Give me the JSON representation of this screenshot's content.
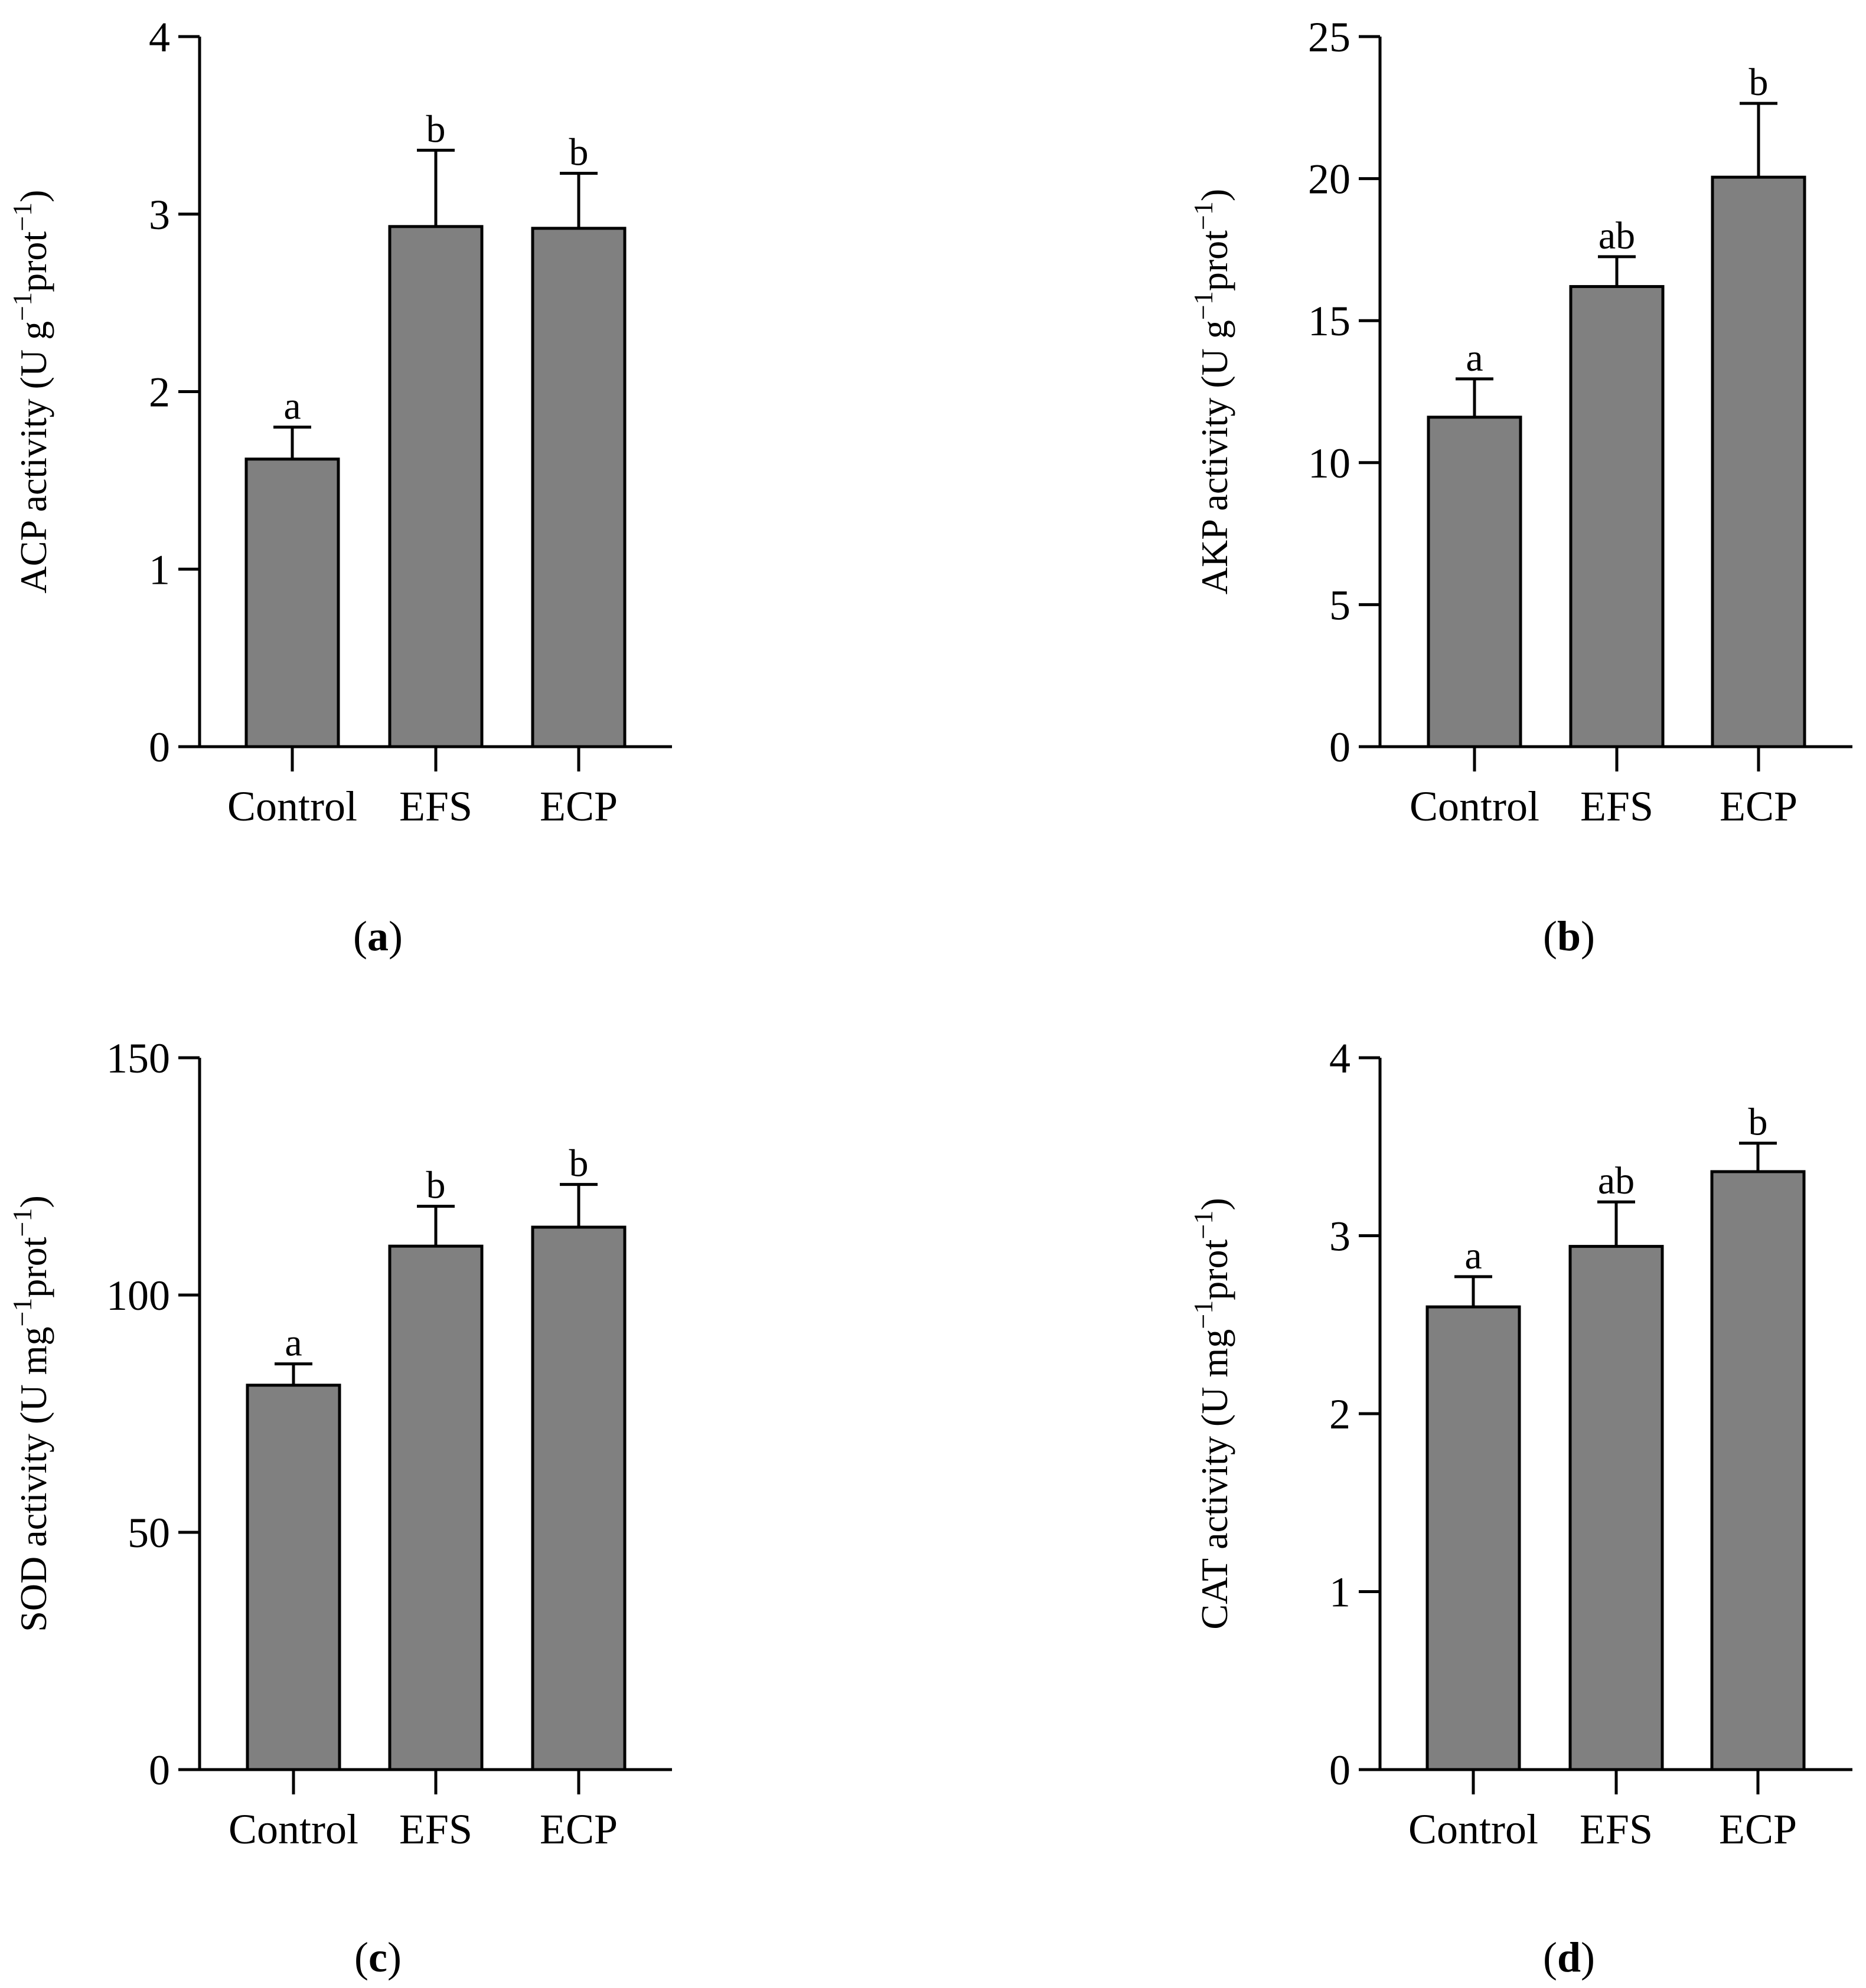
{
  "chart_data": [
    {
      "type": "bar",
      "panel_label": "a",
      "ylabel": {
        "prefix": "ACP activity (U g",
        "mid": "prot",
        "suffix": ")",
        "exp1": "−1",
        "exp2": "−1"
      },
      "categories": [
        "Control",
        "EFS",
        "ECP"
      ],
      "values": [
        1.62,
        2.93,
        2.92
      ],
      "errors": [
        0.18,
        0.43,
        0.31
      ],
      "significance": [
        "a",
        "b",
        "b"
      ],
      "ylim": [
        0,
        4
      ],
      "yticks": [
        0,
        1,
        2,
        3,
        4
      ],
      "bar_color": "#808080"
    },
    {
      "type": "bar",
      "panel_label": "b",
      "ylabel": {
        "prefix": "AKP activity (U g",
        "mid": "prot",
        "suffix": ")",
        "exp1": "−1",
        "exp2": "−1"
      },
      "categories": [
        "Control",
        "EFS",
        "ECP"
      ],
      "values": [
        11.6,
        16.2,
        20.05
      ],
      "errors": [
        1.35,
        1.05,
        2.6
      ],
      "significance": [
        "a",
        "ab",
        "b"
      ],
      "ylim": [
        0,
        25
      ],
      "yticks": [
        0,
        5,
        10,
        15,
        20,
        25
      ],
      "bar_color": "#808080"
    },
    {
      "type": "bar",
      "panel_label": "c",
      "ylabel": {
        "prefix": "SOD activity (U mg",
        "mid": "prot",
        "suffix": ")",
        "exp1": "−1",
        "exp2": "−1"
      },
      "categories": [
        "Control",
        "EFS",
        "ECP"
      ],
      "values": [
        81,
        110.3,
        114.3
      ],
      "errors": [
        4.5,
        8.4,
        9.0
      ],
      "significance": [
        "a",
        "b",
        "b"
      ],
      "ylim": [
        0,
        150
      ],
      "yticks": [
        0,
        50,
        100,
        150
      ],
      "bar_color": "#808080"
    },
    {
      "type": "bar",
      "panel_label": "d",
      "ylabel": {
        "prefix": "CAT activity (U mg",
        "mid": "prot",
        "suffix": ")",
        "exp1": "−1",
        "exp2": "−1"
      },
      "categories": [
        "Control",
        "EFS",
        "ECP"
      ],
      "values": [
        2.6,
        2.94,
        3.36
      ],
      "errors": [
        0.17,
        0.25,
        0.16
      ],
      "significance": [
        "a",
        "ab",
        "b"
      ],
      "ylim": [
        0,
        4
      ],
      "yticks": [
        0,
        1,
        2,
        3,
        4
      ],
      "bar_color": "#808080"
    }
  ]
}
